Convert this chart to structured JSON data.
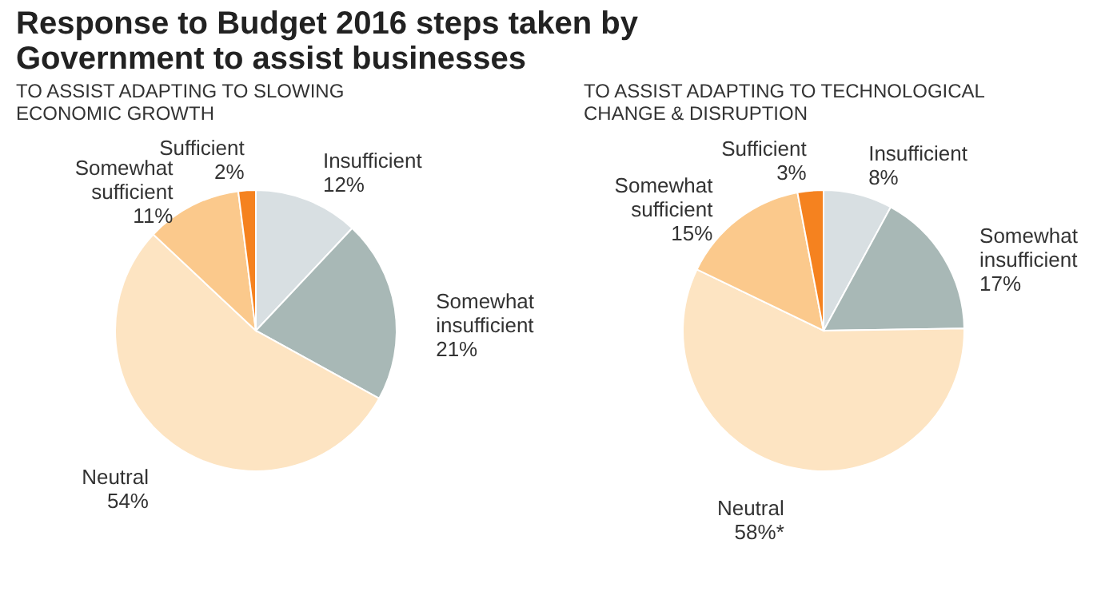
{
  "chart_data": [
    {
      "type": "pie",
      "title": "Response to Budget 2016 steps taken by Government to assist businesses",
      "subtitle": "TO ASSIST ADAPTING TO SLOWING ECONOMIC GROWTH",
      "categories": [
        "Insufficient",
        "Somewhat insufficient",
        "Neutral",
        "Somewhat sufficient",
        "Sufficient"
      ],
      "values": [
        12,
        21,
        54,
        11,
        2
      ],
      "value_labels": [
        "12%",
        "21%",
        "54%",
        "11%",
        "2%"
      ],
      "colors": [
        "#d8dfe2",
        "#a8b8b6",
        "#fde4c2",
        "#fbc98c",
        "#f5821f"
      ],
      "legend": false
    },
    {
      "type": "pie",
      "subtitle": "TO ASSIST ADAPTING TO TECHNOLOGICAL CHANGE & DISRUPTION",
      "categories": [
        "Insufficient",
        "Somewhat insufficient",
        "Neutral",
        "Somewhat sufficient",
        "Sufficient"
      ],
      "values": [
        8,
        17,
        58,
        15,
        3
      ],
      "value_labels": [
        "8%",
        "17%",
        "58%*",
        "15%",
        "3%"
      ],
      "colors": [
        "#d8dfe2",
        "#a8b8b6",
        "#fde4c2",
        "#fbc98c",
        "#f5821f"
      ],
      "legend": false
    }
  ]
}
